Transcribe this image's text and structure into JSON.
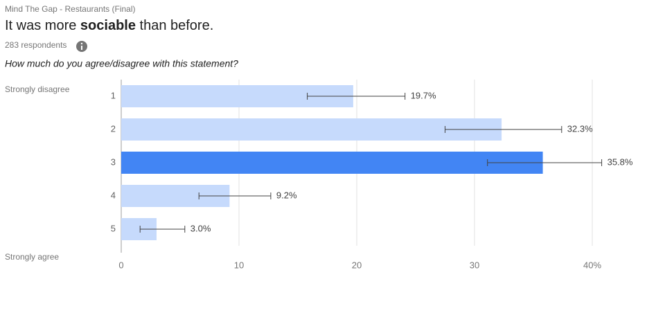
{
  "chart_data": {
    "type": "bar",
    "orientation": "horizontal",
    "survey": "Mind The Gap - Restaurants (Final)",
    "title": [
      "It was more ",
      "sociable",
      " than before."
    ],
    "respondents": "283 respondents",
    "question": "How much do you agree/disagree with this statement?",
    "scale_labels": [
      "Strongly disagree",
      "Strongly agree"
    ],
    "categories": [
      "1",
      "2",
      "3",
      "4",
      "5"
    ],
    "values": [
      19.7,
      32.3,
      35.8,
      9.2,
      3.0
    ],
    "value_labels": [
      "19.7%",
      "32.3%",
      "35.8%",
      "9.2%",
      "3.0%"
    ],
    "error_low": [
      15.8,
      27.5,
      31.1,
      6.6,
      1.6
    ],
    "error_high": [
      24.1,
      37.4,
      40.8,
      12.7,
      5.4
    ],
    "colors": [
      "#c6dafc",
      "#c6dafc",
      "#4285f4",
      "#c6dafc",
      "#c6dafc"
    ],
    "xlim": [
      0,
      40
    ],
    "xticks": [
      0,
      10,
      20,
      30,
      {
        "value": 40,
        "label": "40%"
      }
    ],
    "grid": true
  }
}
